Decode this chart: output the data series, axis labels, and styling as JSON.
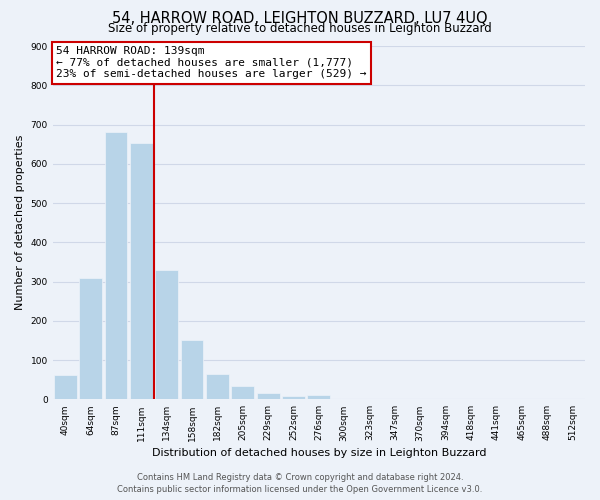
{
  "title": "54, HARROW ROAD, LEIGHTON BUZZARD, LU7 4UQ",
  "subtitle": "Size of property relative to detached houses in Leighton Buzzard",
  "xlabel": "Distribution of detached houses by size in Leighton Buzzard",
  "ylabel": "Number of detached properties",
  "bin_labels": [
    "40sqm",
    "64sqm",
    "87sqm",
    "111sqm",
    "134sqm",
    "158sqm",
    "182sqm",
    "205sqm",
    "229sqm",
    "252sqm",
    "276sqm",
    "300sqm",
    "323sqm",
    "347sqm",
    "370sqm",
    "394sqm",
    "418sqm",
    "441sqm",
    "465sqm",
    "488sqm",
    "512sqm"
  ],
  "bar_values": [
    63,
    310,
    680,
    652,
    330,
    152,
    65,
    35,
    15,
    8,
    10,
    2,
    0,
    0,
    0,
    0,
    0,
    2,
    0,
    0,
    2
  ],
  "bar_color": "#b8d4e8",
  "vline_x": 3.5,
  "vline_color": "#cc0000",
  "annotation_line1": "54 HARROW ROAD: 139sqm",
  "annotation_line2": "← 77% of detached houses are smaller (1,777)",
  "annotation_line3": "23% of semi-detached houses are larger (529) →",
  "ylim": [
    0,
    900
  ],
  "yticks": [
    0,
    100,
    200,
    300,
    400,
    500,
    600,
    700,
    800,
    900
  ],
  "footer_line1": "Contains HM Land Registry data © Crown copyright and database right 2024.",
  "footer_line2": "Contains public sector information licensed under the Open Government Licence v3.0.",
  "bg_color": "#edf2f9",
  "grid_color": "#d0d8e8",
  "title_fontsize": 10.5,
  "subtitle_fontsize": 8.5,
  "axis_label_fontsize": 8,
  "tick_fontsize": 6.5,
  "footer_fontsize": 6,
  "annotation_fontsize": 8
}
